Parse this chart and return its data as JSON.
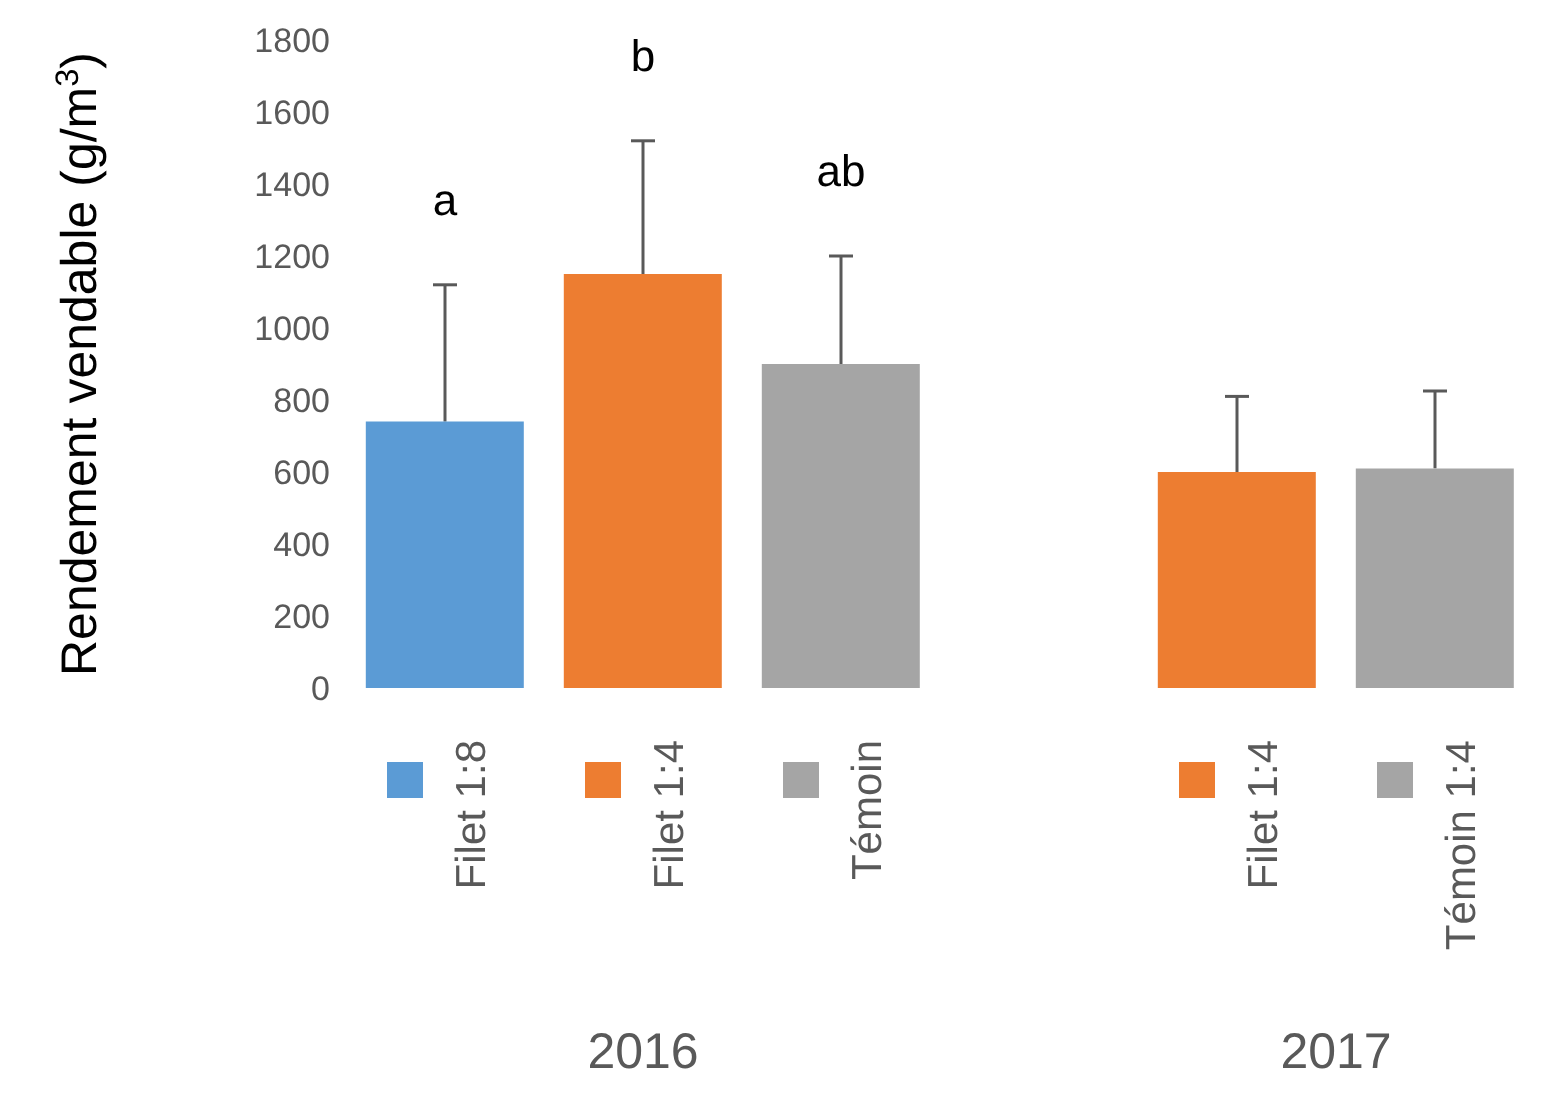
{
  "chart_data": {
    "type": "bar",
    "ylabel": "Rendement vendable (g/m$^{3}$)",
    "categories": [
      "Filet 1:8",
      "Filet 1:4",
      "Témoin",
      null,
      "Filet 1:4",
      "Témoin 1:4"
    ],
    "values": [
      740,
      1150,
      900,
      null,
      600,
      610
    ],
    "colors": [
      "#5b9bd5",
      "#ed7d31",
      "#a5a5a5",
      null,
      "#ed7d31",
      "#a5a5a5"
    ],
    "errors": [
      [
        740,
        1120
      ],
      [
        1150,
        1520
      ],
      [
        900,
        1200
      ],
      null,
      [
        600,
        810
      ],
      [
        610,
        825
      ]
    ],
    "ylim": [
      0,
      1800
    ],
    "yticks": [
      0,
      200,
      400,
      600,
      800,
      1000,
      1200,
      1400,
      1600,
      1800
    ],
    "grid": false,
    "legend": false,
    "annotations": [
      "a",
      "b",
      "ab",
      "2016",
      "2017"
    ]
  }
}
